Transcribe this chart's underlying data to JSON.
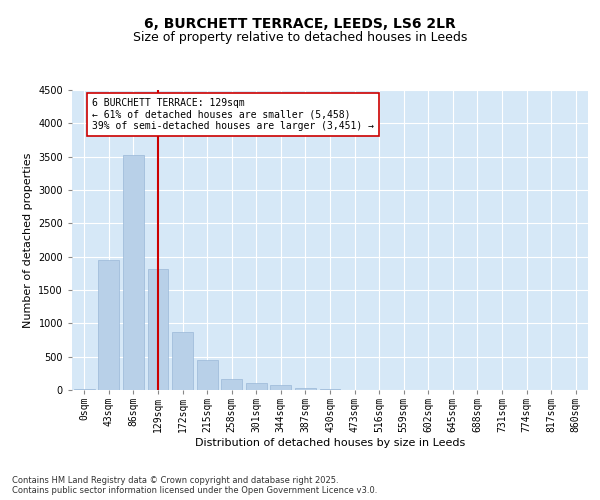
{
  "title": "6, BURCHETT TERRACE, LEEDS, LS6 2LR",
  "subtitle": "Size of property relative to detached houses in Leeds",
  "xlabel": "Distribution of detached houses by size in Leeds",
  "ylabel": "Number of detached properties",
  "categories": [
    "0sqm",
    "43sqm",
    "86sqm",
    "129sqm",
    "172sqm",
    "215sqm",
    "258sqm",
    "301sqm",
    "344sqm",
    "387sqm",
    "430sqm",
    "473sqm",
    "516sqm",
    "559sqm",
    "602sqm",
    "645sqm",
    "688sqm",
    "731sqm",
    "774sqm",
    "817sqm",
    "860sqm"
  ],
  "values": [
    15,
    1950,
    3530,
    1820,
    870,
    450,
    170,
    110,
    70,
    30,
    10,
    0,
    0,
    0,
    0,
    0,
    0,
    0,
    0,
    0,
    0
  ],
  "bar_color": "#b8d0e8",
  "bar_edge_color": "#9ab8d8",
  "red_line_index": 3,
  "red_line_color": "#cc0000",
  "annotation_text": "6 BURCHETT TERRACE: 129sqm\n← 61% of detached houses are smaller (5,458)\n39% of semi-detached houses are larger (3,451) →",
  "annotation_box_facecolor": "#ffffff",
  "annotation_box_edgecolor": "#cc0000",
  "ylim": [
    0,
    4500
  ],
  "yticks": [
    0,
    500,
    1000,
    1500,
    2000,
    2500,
    3000,
    3500,
    4000,
    4500
  ],
  "background_color": "#d6e8f7",
  "grid_color": "#ffffff",
  "fig_background": "#ffffff",
  "footer_text": "Contains HM Land Registry data © Crown copyright and database right 2025.\nContains public sector information licensed under the Open Government Licence v3.0.",
  "title_fontsize": 10,
  "subtitle_fontsize": 9,
  "xlabel_fontsize": 8,
  "ylabel_fontsize": 8,
  "tick_fontsize": 7,
  "annotation_fontsize": 7,
  "footer_fontsize": 6
}
